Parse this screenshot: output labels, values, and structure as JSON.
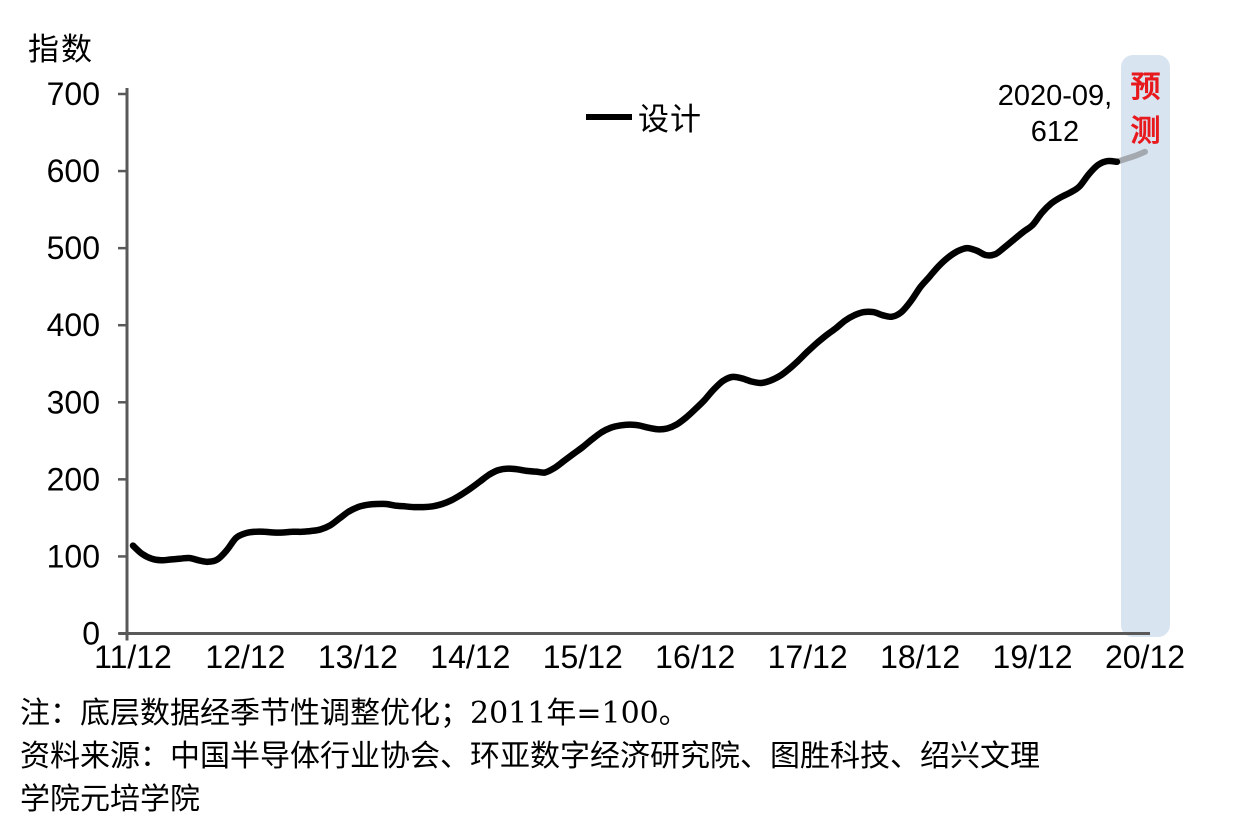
{
  "chart_data": {
    "type": "line",
    "y_axis_title": "指数",
    "ylim": [
      0,
      700
    ],
    "y_ticks": [
      0,
      100,
      200,
      300,
      400,
      500,
      600,
      700
    ],
    "x_tick_labels": [
      "11/12",
      "12/12",
      "13/12",
      "14/12",
      "15/12",
      "16/12",
      "17/12",
      "18/12",
      "19/12",
      "20/12"
    ],
    "x_start": "2011-12",
    "x_frequency": "monthly",
    "legend_position": "top-center",
    "grid": false,
    "series": [
      {
        "name": "设计",
        "color": "#000000",
        "values": [
          114,
          103,
          97,
          95,
          96,
          97,
          98,
          95,
          93,
          96,
          108,
          124,
          130,
          132,
          132,
          131,
          131,
          132,
          132,
          133,
          135,
          140,
          149,
          158,
          164,
          167,
          168,
          168,
          166,
          165,
          164,
          164,
          165,
          168,
          173,
          180,
          188,
          197,
          206,
          212,
          214,
          213,
          211,
          210,
          209,
          215,
          224,
          233,
          242,
          252,
          261,
          267,
          270,
          271,
          270,
          267,
          265,
          266,
          271,
          280,
          291,
          303,
          317,
          328,
          333,
          331,
          327,
          325,
          328,
          334,
          343,
          354,
          366,
          377,
          387,
          396,
          406,
          413,
          417,
          417,
          413,
          411,
          417,
          431,
          449,
          463,
          477,
          488,
          496,
          500,
          497,
          491,
          492,
          501,
          511,
          521,
          530,
          546,
          558,
          566,
          572,
          580,
          596,
          608,
          613,
          612,
          616,
          620,
          625
        ]
      }
    ],
    "forecast_start_index": 105,
    "forecast_line_color": "#A3A9AF",
    "forecast_band_label": "预测",
    "forecast_band_color": "#D9E4F1",
    "forecast_label_color": "#E8191D",
    "annotation": {
      "line1": "2020-09,",
      "line2": "612"
    },
    "axis_color": "#595959"
  },
  "notes": {
    "note": "注：底层数据经季节性调整优化；2011年=100。",
    "source_lines": [
      "资料来源：中国半导体行业协会、环亚数字经济研究院、图胜科技、绍兴文理",
      "学院元培学院"
    ]
  }
}
